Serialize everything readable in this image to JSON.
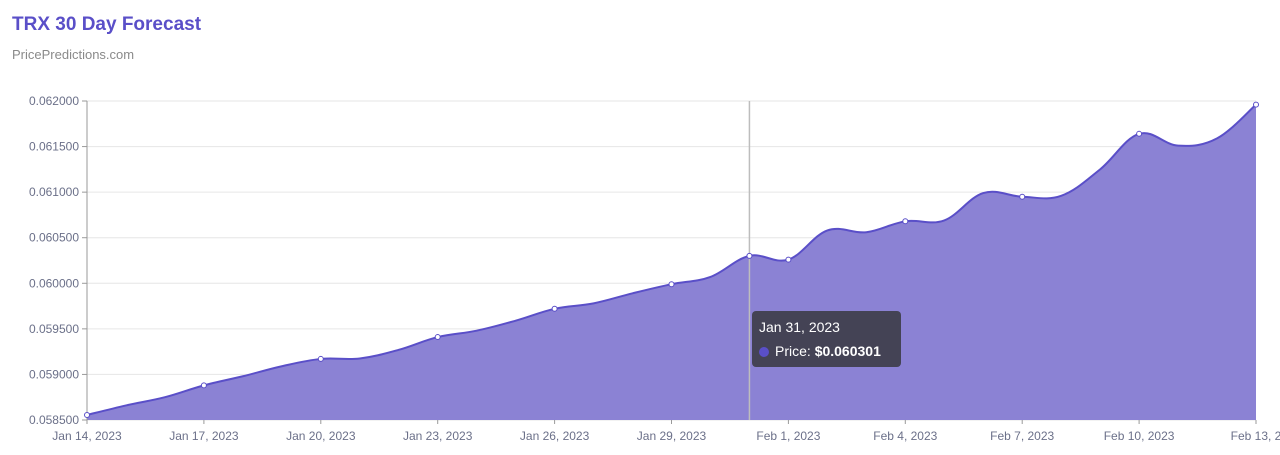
{
  "header": {
    "title": "TRX 30 Day Forecast",
    "subtitle": "PricePredictions.com"
  },
  "colors": {
    "title": "#5a4fc8",
    "area_fill": "#8b82d4",
    "line": "#5a4fc8",
    "grid": "#e6e6e6",
    "crosshair": "#bdbdbd",
    "tooltip_bg": "#3e3e4a"
  },
  "tooltip": {
    "date": "Jan 31, 2023",
    "series_label": "Price: ",
    "value": "$0.060301"
  },
  "chart_data": {
    "type": "area",
    "title": "TRX 30 Day Forecast",
    "subtitle": "PricePredictions.com",
    "xlabel": "",
    "ylabel": "",
    "ylim": [
      0.0585,
      0.062
    ],
    "grid": true,
    "y_ticks": [
      "0.062000",
      "0.061500",
      "0.061000",
      "0.060500",
      "0.060000",
      "0.059500",
      "0.059000",
      "0.058500"
    ],
    "y_tick_values": [
      0.062,
      0.0615,
      0.061,
      0.0605,
      0.06,
      0.0595,
      0.059,
      0.0585
    ],
    "x_ticks": [
      "Jan 14, 2023",
      "Jan 17, 2023",
      "Jan 20, 2023",
      "Jan 23, 2023",
      "Jan 26, 2023",
      "Jan 29, 2023",
      "Feb 1, 2023",
      "Feb 4, 2023",
      "Feb 7, 2023",
      "Feb 10, 2023",
      "Feb 13, 2"
    ],
    "x_tick_days": [
      0,
      3,
      6,
      9,
      12,
      15,
      18,
      21,
      24,
      27,
      30
    ],
    "highlight_day": 17,
    "series": [
      {
        "name": "Price",
        "marker_days": [
          0,
          3,
          6,
          9,
          12,
          15,
          17,
          18,
          21,
          24,
          27,
          30
        ],
        "x": [
          "Jan 14, 2023",
          "Jan 15, 2023",
          "Jan 16, 2023",
          "Jan 17, 2023",
          "Jan 18, 2023",
          "Jan 19, 2023",
          "Jan 20, 2023",
          "Jan 21, 2023",
          "Jan 22, 2023",
          "Jan 23, 2023",
          "Jan 24, 2023",
          "Jan 25, 2023",
          "Jan 26, 2023",
          "Jan 27, 2023",
          "Jan 28, 2023",
          "Jan 29, 2023",
          "Jan 30, 2023",
          "Jan 31, 2023",
          "Feb 1, 2023",
          "Feb 2, 2023",
          "Feb 3, 2023",
          "Feb 4, 2023",
          "Feb 5, 2023",
          "Feb 6, 2023",
          "Feb 7, 2023",
          "Feb 8, 2023",
          "Feb 9, 2023",
          "Feb 10, 2023",
          "Feb 11, 2023",
          "Feb 12, 2023",
          "Feb 13, 2023"
        ],
        "values": [
          0.058555,
          0.05866,
          0.05875,
          0.05888,
          0.05898,
          0.05909,
          0.05917,
          0.059175,
          0.05927,
          0.05941,
          0.05948,
          0.05959,
          0.05972,
          0.05978,
          0.05989,
          0.05999,
          0.06007,
          0.060301,
          0.06026,
          0.06058,
          0.06056,
          0.06068,
          0.06069,
          0.06099,
          0.06095,
          0.06096,
          0.06125,
          0.06164,
          0.06151,
          0.06159,
          0.06196
        ]
      }
    ]
  }
}
